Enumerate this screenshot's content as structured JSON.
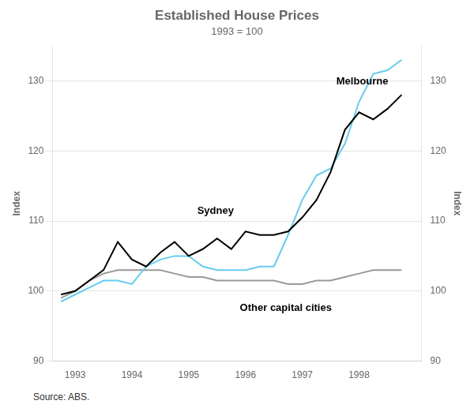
{
  "chart_data": {
    "type": "line",
    "title": "Established House Prices",
    "subtitle": "1993 = 100",
    "ylabel": "Index",
    "y2label": "Index",
    "source": "Source: ABS.",
    "xlim": [
      1992.6,
      1999.1
    ],
    "xticks": [
      1993,
      1994,
      1995,
      1996,
      1997,
      1998
    ],
    "ylim": [
      90,
      135
    ],
    "yticks": [
      90,
      100,
      110,
      120,
      130
    ],
    "y2lim": [
      90,
      135
    ],
    "y2ticks": [
      90,
      100,
      110,
      120,
      130
    ],
    "grid": "y",
    "x": [
      1992.75,
      1993.0,
      1993.25,
      1993.5,
      1993.75,
      1994.0,
      1994.25,
      1994.5,
      1994.75,
      1995.0,
      1995.25,
      1995.5,
      1995.75,
      1996.0,
      1996.25,
      1996.5,
      1996.75,
      1997.0,
      1997.25,
      1997.5,
      1997.75,
      1998.0,
      1998.25,
      1998.5,
      1998.75
    ],
    "series": [
      {
        "color": "#000000",
        "values": [
          99.5,
          100.0,
          101.5,
          103.0,
          107.0,
          104.5,
          103.5,
          105.5,
          107.0,
          105.0,
          106.0,
          107.5,
          106.0,
          108.5,
          108.0,
          108.0,
          108.5,
          110.5,
          113.0,
          117.0,
          123.0,
          125.5,
          124.5,
          126.0,
          128.0
        ]
      },
      {
        "color": "#66ccee",
        "values": [
          98.5,
          99.5,
          100.5,
          101.5,
          101.5,
          101.0,
          103.5,
          104.5,
          105.0,
          105.0,
          103.5,
          103.0,
          103.0,
          103.0,
          103.5,
          103.5,
          108.0,
          113.0,
          116.5,
          117.5,
          121.0,
          127.0,
          131.0,
          131.5,
          133.0
        ]
      },
      {
        "color": "#999999",
        "values": [
          99.0,
          100.0,
          101.5,
          102.5,
          103.0,
          103.0,
          103.0,
          103.0,
          102.5,
          102.0,
          102.0,
          101.5,
          101.5,
          101.5,
          101.5,
          101.5,
          101.0,
          101.0,
          101.5,
          101.5,
          102.0,
          102.5,
          103.0,
          103.0,
          103.0
        ]
      }
    ],
    "annotations": [
      {
        "text": "Sydney",
        "x": 1995.15,
        "y": 111.0
      },
      {
        "text": "Melbourne",
        "x": 1997.6,
        "y": 129.5
      },
      {
        "text": "Other capital cities",
        "x": 1995.9,
        "y": 97.2
      }
    ]
  }
}
